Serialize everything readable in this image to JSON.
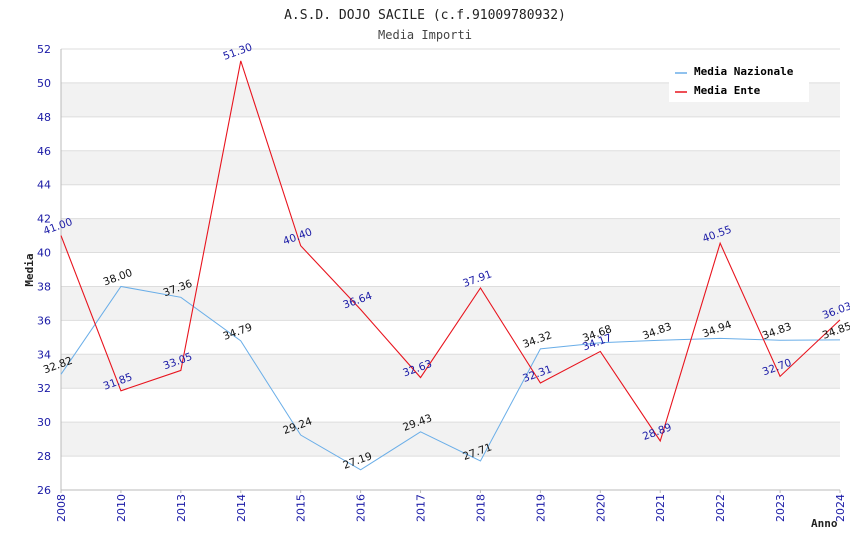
{
  "chart_data": {
    "type": "line",
    "title": "A.S.D. DOJO SACILE (c.f.91009780932)",
    "subtitle": "Media Importi",
    "xlabel": "Anno",
    "ylabel": "Media",
    "categories": [
      "2008",
      "2010",
      "2013",
      "2014",
      "2015",
      "2016",
      "2017",
      "2018",
      "2019",
      "2020",
      "2021",
      "2022",
      "2023",
      "2024"
    ],
    "ylim": [
      26,
      52
    ],
    "yticks": [
      26,
      28,
      30,
      32,
      34,
      36,
      38,
      40,
      42,
      44,
      46,
      48,
      50,
      52
    ],
    "grid": true,
    "legend_position": "top-right",
    "series": [
      {
        "name": "Media Nazionale",
        "color": "#6aaee8",
        "values": [
          32.82,
          38.0,
          37.36,
          34.79,
          29.24,
          27.19,
          29.43,
          27.71,
          34.32,
          34.68,
          34.83,
          34.94,
          34.83,
          34.85
        ],
        "labels": [
          "32.82",
          "38.00",
          "37.36",
          "34.79",
          "29.24",
          "27.19",
          "29.43",
          "27.71",
          "34.32",
          "34.68",
          "34.83",
          "34.94",
          "34.83",
          "34.85"
        ]
      },
      {
        "name": "Media Ente",
        "color": "#e8141e",
        "values": [
          41.0,
          31.85,
          33.05,
          51.3,
          40.4,
          36.64,
          32.63,
          37.91,
          32.31,
          34.17,
          28.89,
          40.55,
          32.7,
          36.03
        ],
        "labels": [
          "41.00",
          "31.85",
          "33.05",
          "51.30",
          "40.40",
          "36.64",
          "32.63",
          "37.91",
          "32.31",
          "34.17",
          "28.89",
          "40.55",
          "32.70",
          "36.03"
        ]
      }
    ]
  }
}
